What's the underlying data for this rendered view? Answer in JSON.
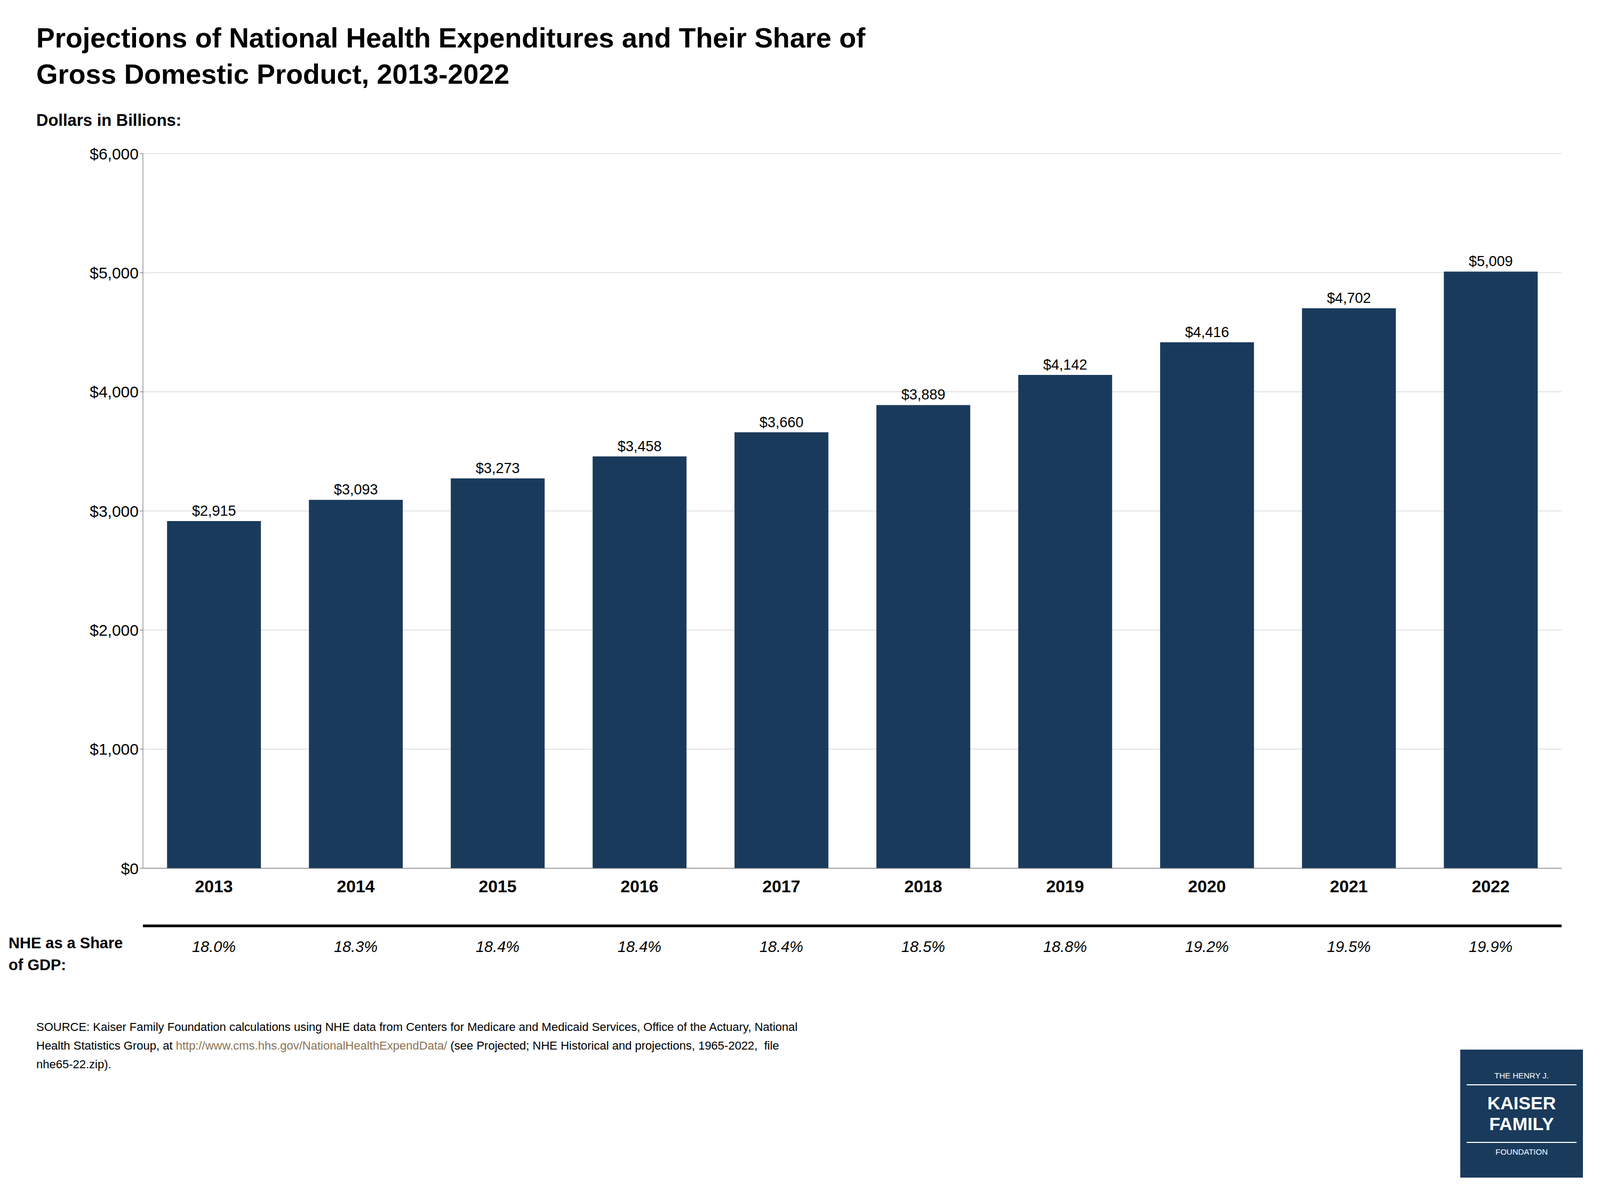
{
  "chart_data": {
    "type": "bar",
    "title": "Projections of National Health Expenditures and Their Share of\nGross Domestic Product, 2013-2022",
    "ylabel": "Dollars in Billions:",
    "categories": [
      "2013",
      "2014",
      "2015",
      "2016",
      "2017",
      "2018",
      "2019",
      "2020",
      "2021",
      "2022"
    ],
    "values": [
      2915,
      3093,
      3273,
      3458,
      3660,
      3889,
      4142,
      4416,
      4702,
      5009
    ],
    "value_labels": [
      "$2,915",
      "$3,093",
      "$3,273",
      "$3,458",
      "$3,660",
      "$3,889",
      "$4,142",
      "$4,416",
      "$4,702",
      "$5,009"
    ],
    "data_labels": true,
    "color": "#1a3a5c",
    "ylim": [
      0,
      6000
    ],
    "yticks": [
      {
        "value": 0,
        "label": "$0"
      },
      {
        "value": 1000,
        "label": "$1,000"
      },
      {
        "value": 2000,
        "label": "$2,000"
      },
      {
        "value": 3000,
        "label": "$3,000"
      },
      {
        "value": 4000,
        "label": "$4,000"
      },
      {
        "value": 5000,
        "label": "$5,000"
      },
      {
        "value": 6000,
        "label": "$6,000"
      }
    ],
    "grid": true,
    "share_row": {
      "label": "NHE as a Share\nof GDP:",
      "values": [
        18.0,
        18.3,
        18.4,
        18.4,
        18.4,
        18.5,
        18.8,
        19.2,
        19.5,
        19.9
      ],
      "value_labels": [
        "18.0%",
        "18.3%",
        "18.4%",
        "18.4%",
        "18.4%",
        "18.5%",
        "18.8%",
        "19.2%",
        "19.5%",
        "19.9%"
      ]
    },
    "source": {
      "line1": "SOURCE: Kaiser Family Foundation calculations using NHE data from Centers for Medicare and Medicaid Services, Office of the Actuary, National",
      "line2": "Health Statistics Group, at ",
      "url": "http://www.cms.hhs.gov/NationalHealthExpendData/",
      "line3": " (see Projected; NHE Historical and projections, 1965-2022,  file",
      "line4": "nhe65-22.zip)."
    },
    "url_color": "#8B7355",
    "logo": {
      "lines": [
        "THE HENRY J.",
        "KAISER",
        "FAMILY",
        "FOUNDATION"
      ],
      "color": "#1a3a5c"
    }
  }
}
